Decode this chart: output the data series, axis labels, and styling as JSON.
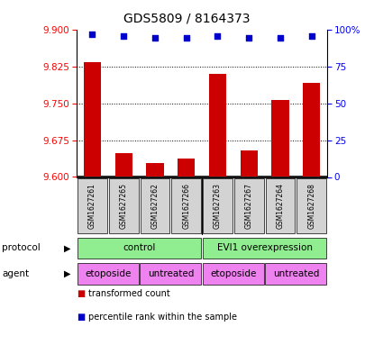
{
  "title": "GDS5809 / 8164373",
  "samples": [
    "GSM1627261",
    "GSM1627265",
    "GSM1627262",
    "GSM1627266",
    "GSM1627263",
    "GSM1627267",
    "GSM1627264",
    "GSM1627268"
  ],
  "transformed_counts": [
    9.835,
    9.648,
    9.628,
    9.638,
    9.81,
    9.655,
    9.758,
    9.792
  ],
  "percentile_ranks": [
    97,
    96,
    95,
    95,
    96,
    95,
    95,
    96
  ],
  "ylim": [
    9.6,
    9.9
  ],
  "yticks": [
    9.6,
    9.675,
    9.75,
    9.825,
    9.9
  ],
  "y_right_ticks": [
    0,
    25,
    50,
    75,
    100
  ],
  "y_right_labels": [
    "0",
    "25",
    "50",
    "75",
    "100%"
  ],
  "protocol_labels": [
    "control",
    "EVI1 overexpression"
  ],
  "protocol_ranges": [
    [
      0,
      4
    ],
    [
      4,
      8
    ]
  ],
  "protocol_color": "#90ee90",
  "agent_labels": [
    "etoposide",
    "untreated",
    "etoposide",
    "untreated"
  ],
  "agent_ranges": [
    [
      0,
      2
    ],
    [
      2,
      4
    ],
    [
      4,
      6
    ],
    [
      6,
      8
    ]
  ],
  "agent_color": "#ee82ee",
  "bar_color": "#cc0000",
  "dot_color": "#0000cc",
  "bar_width": 0.55,
  "left_tick_color": "red",
  "right_tick_color": "blue",
  "sample_box_color": "#d3d3d3",
  "legend_items": [
    {
      "color": "#cc0000",
      "label": "transformed count"
    },
    {
      "color": "#0000cc",
      "label": "percentile rank within the sample"
    }
  ]
}
